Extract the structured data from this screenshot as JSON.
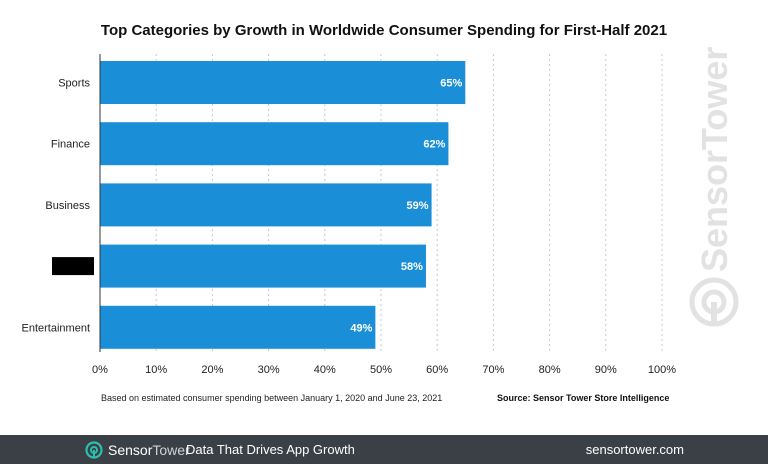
{
  "chart_data": {
    "type": "bar",
    "orientation": "horizontal",
    "title": "Top Categories by Growth in Worldwide Consumer Spending for First-Half 2021",
    "categories": [
      "Sports",
      "Finance",
      "Business",
      "",
      "Entertainment"
    ],
    "values": [
      65,
      62,
      59,
      58,
      49
    ],
    "value_labels": [
      "65%",
      "62%",
      "59%",
      "58%",
      "49%"
    ],
    "xlim": [
      0,
      100
    ],
    "x_ticks": [
      "0%",
      "10%",
      "20%",
      "30%",
      "40%",
      "50%",
      "60%",
      "70%",
      "80%",
      "90%",
      "100%"
    ],
    "grid": "vertical dotted",
    "bar_color": "#1a8fd8",
    "redacted_category_index": 3
  },
  "notes": {
    "left": "Based on estimated consumer spending between January 1, 2020 and June 23, 2021",
    "right": "Source: Sensor Tower Store Intelligence"
  },
  "watermark": {
    "text": "SensorTower"
  },
  "footer": {
    "brand_first": "Sensor",
    "brand_second": "Tower",
    "tagline": "Data That Drives App Growth",
    "url": "sensortower.com",
    "background": "#3b4046",
    "logo_color": "#2bbfb0"
  }
}
